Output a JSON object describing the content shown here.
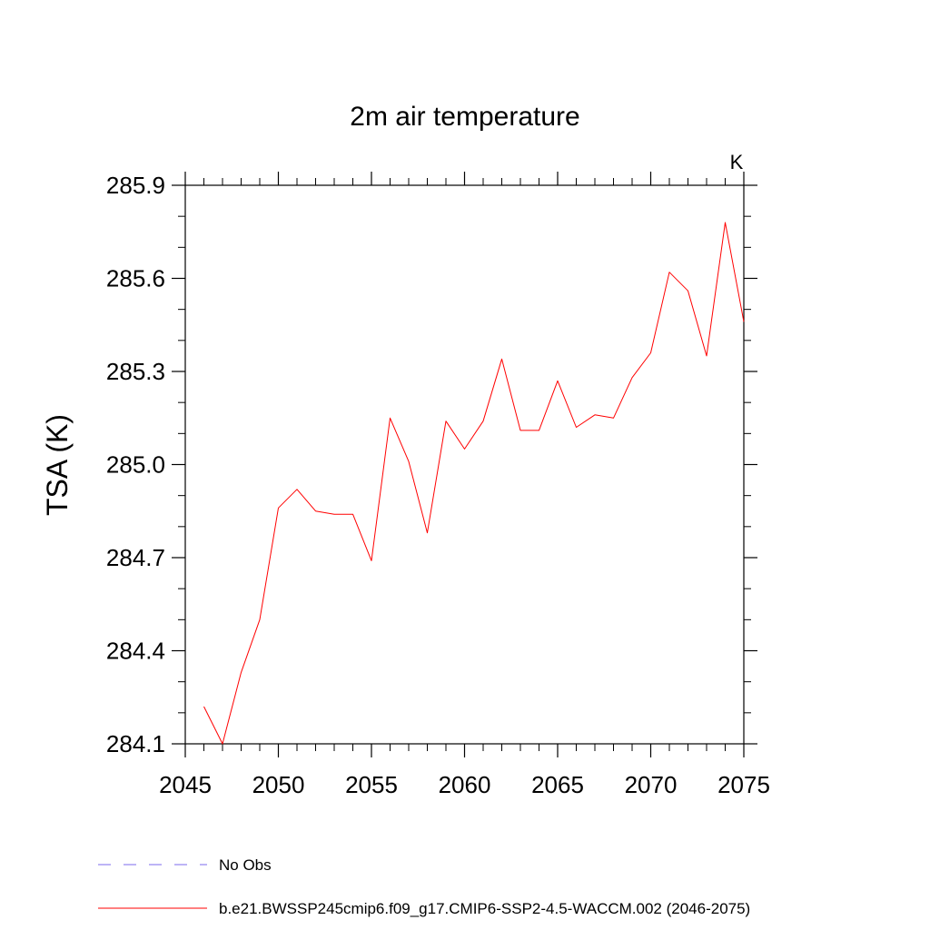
{
  "chart_data": {
    "type": "line",
    "title": "2m air temperature",
    "units_label": "K",
    "ylabel": "TSA  (K)",
    "xlabel": "",
    "xlim": [
      2045,
      2075
    ],
    "ylim": [
      284.1,
      285.9
    ],
    "x_ticks": [
      2045,
      2050,
      2055,
      2060,
      2065,
      2070,
      2075
    ],
    "x_tick_labels": [
      "2045",
      "2050",
      "2055",
      "2060",
      "2065",
      "2070",
      "2075"
    ],
    "y_ticks": [
      284.1,
      284.4,
      284.7,
      285.0,
      285.3,
      285.6,
      285.9
    ],
    "y_tick_labels": [
      "284.1",
      "284.4",
      "284.7",
      "285.0",
      "285.3",
      "285.6",
      "285.9"
    ],
    "grid": false,
    "legend_position": "bottom",
    "series": [
      {
        "name": "b.e21.BWSSP245cmip6.f09_g17.CMIP6-SSP2-4.5-WACCM.002 (2046-2075)",
        "color": "#ff0000",
        "style": "solid",
        "x": [
          2046,
          2047,
          2048,
          2049,
          2050,
          2051,
          2052,
          2053,
          2054,
          2055,
          2056,
          2057,
          2058,
          2059,
          2060,
          2061,
          2062,
          2063,
          2064,
          2065,
          2066,
          2067,
          2068,
          2069,
          2070,
          2071,
          2072,
          2073,
          2074,
          2075
        ],
        "y": [
          284.22,
          284.1,
          284.33,
          284.5,
          284.86,
          284.92,
          284.85,
          284.84,
          284.84,
          284.69,
          285.15,
          285.01,
          284.78,
          285.14,
          285.05,
          285.14,
          285.34,
          285.11,
          285.11,
          285.27,
          285.12,
          285.16,
          285.15,
          285.28,
          285.36,
          285.62,
          285.56,
          285.35,
          285.78,
          285.46
        ]
      }
    ],
    "legend": [
      {
        "label": "No Obs",
        "color": "#7b68ee",
        "style": "dashed"
      },
      {
        "label": "b.e21.BWSSP245cmip6.f09_g17.CMIP6-SSP2-4.5-WACCM.002 (2046-2075)",
        "color": "#ff0000",
        "style": "solid"
      }
    ]
  }
}
